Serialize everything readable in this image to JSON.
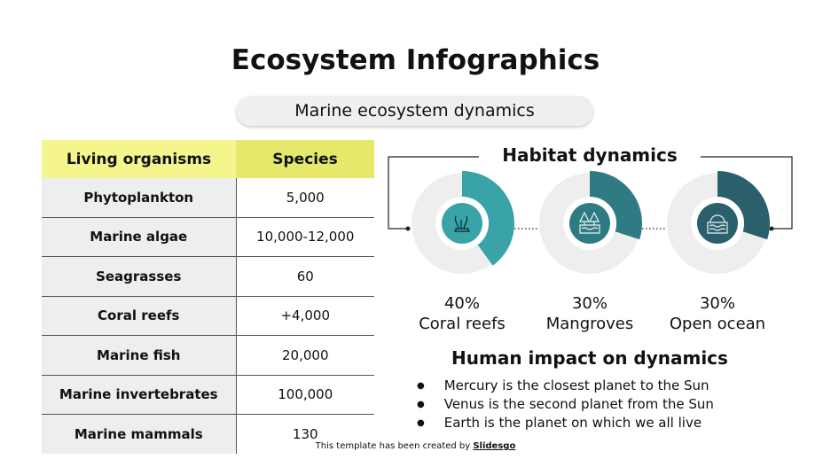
{
  "title": "Ecosystem Infographics",
  "subtitle": "Marine ecosystem dynamics",
  "table": {
    "headers": [
      "Living organisms",
      "Species"
    ],
    "rows": [
      [
        "Phytoplankton",
        "5,000"
      ],
      [
        "Marine algae",
        "10,000-12,000"
      ],
      [
        "Seagrasses",
        "60"
      ],
      [
        "Coral reefs",
        "+4,000"
      ],
      [
        "Marine fish",
        "20,000"
      ],
      [
        "Marine invertebrates",
        "100,000"
      ],
      [
        "Marine mammals",
        "130"
      ]
    ]
  },
  "habitat": {
    "title": "Habitat dynamics",
    "items": [
      {
        "percent": "40%",
        "value": 40,
        "label": "Coral reefs",
        "icon": "coral-icon",
        "color": "#3aa3a8"
      },
      {
        "percent": "30%",
        "value": 30,
        "label": "Mangroves",
        "icon": "mangrove-icon",
        "color": "#2f7b83"
      },
      {
        "percent": "30%",
        "value": 30,
        "label": "Open ocean",
        "icon": "ocean-icon",
        "color": "#2a5f6c"
      }
    ]
  },
  "impact": {
    "title": "Human impact on dynamics",
    "bullets": [
      "Mercury is the closest planet to the Sun",
      "Venus is the second planet from the Sun",
      "Earth is the planet on which we all live"
    ]
  },
  "footer": {
    "text": "This template has been created by ",
    "brand": "Slidesgo"
  },
  "colors": {
    "header_yellow": "#f4f58c",
    "header_yellow_dark": "#e5e86a",
    "ring_grey": "#eeeeee"
  }
}
